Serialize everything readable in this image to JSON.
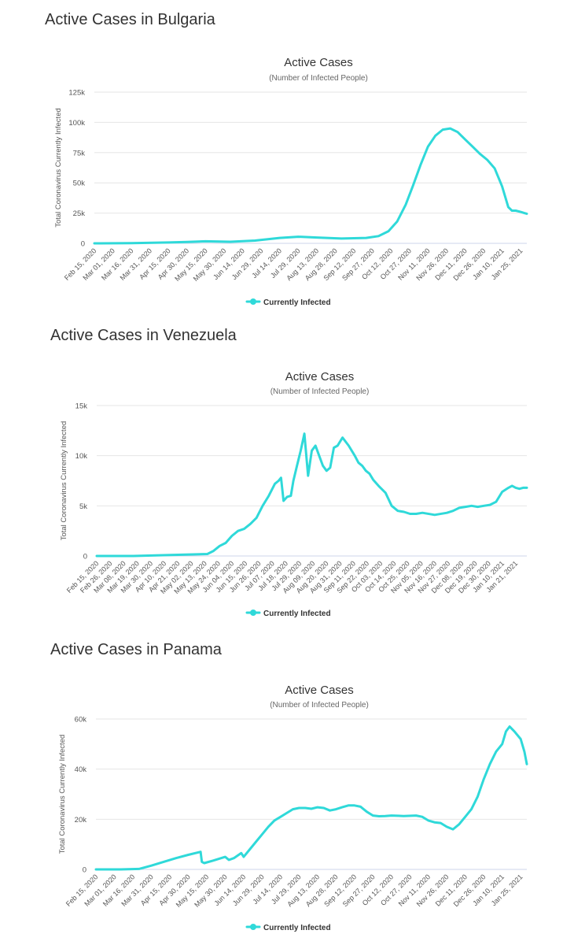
{
  "colors": {
    "series": "#2fd9d9",
    "text": "#333333"
  },
  "chart_data": [
    {
      "type": "line",
      "section_title": "Active Cases in Bulgaria",
      "title": "Active Cases",
      "subtitle": "(Number of Infected People)",
      "xlabel": "",
      "ylabel": "Total Coronavirus Currently Infected",
      "ylim": [
        0,
        125000
      ],
      "yticks": [
        0,
        25000,
        50000,
        75000,
        100000,
        125000
      ],
      "ytick_labels": [
        "0",
        "25k",
        "50k",
        "75k",
        "100k",
        "125k"
      ],
      "x_range": [
        0,
        350
      ],
      "x_ticks": [
        0,
        15,
        30,
        45,
        60,
        75,
        90,
        105,
        120,
        135,
        150,
        165,
        180,
        195,
        210,
        225,
        240,
        255,
        270,
        285,
        300,
        315,
        330,
        345
      ],
      "x_tick_labels": [
        "Feb 15, 2020",
        "Mar 01, 2020",
        "Mar 16, 2020",
        "Mar 31, 2020",
        "Apr 15, 2020",
        "Apr 30, 2020",
        "May 15, 2020",
        "May 30, 2020",
        "Jun 14, 2020",
        "Jun 29, 2020",
        "Jul 14, 2020",
        "Jul 29, 2020",
        "Aug 13, 2020",
        "Aug 28, 2020",
        "Sep 12, 2020",
        "Sep 27, 2020",
        "Oct 12, 2020",
        "Oct 27, 2020",
        "Nov 11, 2020",
        "Nov 26, 2020",
        "Dec 11, 2020",
        "Dec 26, 2020",
        "Jan 10, 2021",
        "Jan 25, 2021"
      ],
      "legend": "Currently Infected",
      "series": [
        {
          "name": "Currently Infected",
          "x": [
            0,
            30,
            60,
            75,
            90,
            110,
            130,
            150,
            165,
            180,
            200,
            220,
            230,
            238,
            245,
            252,
            258,
            264,
            270,
            276,
            282,
            288,
            294,
            300,
            306,
            312,
            318,
            324,
            330,
            335,
            338,
            341,
            345,
            348,
            350
          ],
          "values": [
            0,
            200,
            700,
            1200,
            1700,
            1300,
            2300,
            4500,
            5500,
            4800,
            4000,
            4500,
            6000,
            10000,
            18000,
            32000,
            48000,
            65000,
            80000,
            89000,
            94000,
            95000,
            92000,
            86000,
            80000,
            74000,
            69000,
            62000,
            47000,
            30000,
            27000,
            27000,
            26000,
            25000,
            24500
          ]
        }
      ]
    },
    {
      "type": "line",
      "section_title": "Active Cases in Venezuela",
      "title": "Active Cases",
      "subtitle": "(Number of Infected People)",
      "xlabel": "",
      "ylabel": "Total Coronavirus Currently Infected",
      "ylim": [
        0,
        15000
      ],
      "yticks": [
        0,
        5000,
        10000,
        15000
      ],
      "ytick_labels": [
        "0",
        "5k",
        "10k",
        "15k"
      ],
      "x_range": [
        0,
        350
      ],
      "x_ticks": [
        0,
        11,
        22,
        33,
        44,
        55,
        66,
        77,
        88,
        99,
        110,
        121,
        132,
        143,
        154,
        165,
        176,
        187,
        198,
        209,
        220,
        231,
        242,
        253,
        264,
        275,
        286,
        297,
        308,
        319,
        330,
        341
      ],
      "x_tick_labels": [
        "Feb 15, 2020",
        "Feb 26, 2020",
        "Mar 08, 2020",
        "Mar 19, 2020",
        "Mar 30, 2020",
        "Apr 10, 2020",
        "Apr 21, 2020",
        "May 02, 2020",
        "May 13, 2020",
        "May 24, 2020",
        "Jun 04, 2020",
        "Jun 15, 2020",
        "Jun 26, 2020",
        "Jul 07, 2020",
        "Jul 18, 2020",
        "Jul 29, 2020",
        "Aug 09, 2020",
        "Aug 20, 2020",
        "Aug 31, 2020",
        "Sep 11, 2020",
        "Sep 22, 2020",
        "Oct 03, 2020",
        "Oct 14, 2020",
        "Oct 25, 2020",
        "Nov 05, 2020",
        "Nov 16, 2020",
        "Nov 27, 2020",
        "Dec 08, 2020",
        "Dec 19, 2020",
        "Dec 30, 2020",
        "Jan 10, 2021",
        "Jan 21, 2021"
      ],
      "legend": "Currently Infected",
      "series": [
        {
          "name": "Currently Infected",
          "x": [
            0,
            30,
            60,
            90,
            95,
            100,
            105,
            110,
            115,
            120,
            125,
            130,
            135,
            140,
            145,
            148,
            150,
            152,
            155,
            158,
            160,
            163,
            166,
            169,
            172,
            175,
            178,
            181,
            184,
            187,
            190,
            193,
            196,
            200,
            205,
            210,
            213,
            216,
            219,
            222,
            225,
            230,
            235,
            240,
            245,
            250,
            255,
            260,
            265,
            275,
            285,
            290,
            295,
            300,
            305,
            310,
            315,
            320,
            325,
            330,
            335,
            338,
            341,
            344,
            347,
            350
          ],
          "values": [
            0,
            0,
            100,
            200,
            500,
            1000,
            1300,
            2000,
            2500,
            2700,
            3200,
            3800,
            5000,
            6000,
            7200,
            7500,
            7800,
            5500,
            5900,
            6000,
            7500,
            9000,
            10500,
            12200,
            8000,
            10500,
            11000,
            10000,
            9000,
            8500,
            8800,
            10800,
            11000,
            11800,
            11000,
            10000,
            9300,
            9000,
            8500,
            8200,
            7600,
            6900,
            6300,
            5000,
            4500,
            4400,
            4200,
            4200,
            4300,
            4100,
            4300,
            4500,
            4800,
            4900,
            5000,
            4900,
            5000,
            5100,
            5400,
            6400,
            6800,
            7000,
            6800,
            6700,
            6800,
            6800
          ]
        }
      ]
    },
    {
      "type": "line",
      "section_title": "Active Cases in Panama",
      "title": "Active Cases",
      "subtitle": "(Number of Infected People)",
      "xlabel": "",
      "ylabel": "Total Coronavirus Currently Infected",
      "ylim": [
        0,
        60000
      ],
      "yticks": [
        0,
        20000,
        40000,
        60000
      ],
      "ytick_labels": [
        "0",
        "20k",
        "40k",
        "60k"
      ],
      "x_range": [
        0,
        350
      ],
      "x_ticks": [
        0,
        15,
        30,
        45,
        60,
        75,
        90,
        105,
        120,
        135,
        150,
        165,
        180,
        195,
        210,
        225,
        240,
        255,
        270,
        285,
        300,
        315,
        330,
        345
      ],
      "x_tick_labels": [
        "Feb 15, 2020",
        "Mar 01, 2020",
        "Mar 16, 2020",
        "Mar 31, 2020",
        "Apr 15, 2020",
        "Apr 30, 2020",
        "May 15, 2020",
        "May 30, 2020",
        "Jun 14, 2020",
        "Jun 29, 2020",
        "Jul 14, 2020",
        "Jul 29, 2020",
        "Aug 13, 2020",
        "Aug 28, 2020",
        "Sep 12, 2020",
        "Sep 27, 2020",
        "Oct 12, 2020",
        "Oct 27, 2020",
        "Nov 11, 2020",
        "Nov 26, 2020",
        "Dec 11, 2020",
        "Dec 26, 2020",
        "Jan 10, 2021",
        "Jan 25, 2021"
      ],
      "legend": "Currently Infected",
      "series": [
        {
          "name": "Currently Infected",
          "x": [
            0,
            20,
            35,
            45,
            55,
            65,
            75,
            85,
            86,
            88,
            95,
            105,
            108,
            112,
            118,
            120,
            125,
            130,
            135,
            140,
            145,
            150,
            155,
            160,
            165,
            170,
            175,
            180,
            185,
            190,
            195,
            200,
            205,
            210,
            215,
            220,
            225,
            230,
            235,
            240,
            250,
            260,
            265,
            270,
            275,
            280,
            285,
            290,
            295,
            300,
            305,
            310,
            315,
            320,
            325,
            330,
            333,
            336,
            340,
            345,
            348,
            350
          ],
          "values": [
            0,
            0,
            200,
            1500,
            3000,
            4500,
            5800,
            7000,
            3000,
            2500,
            3500,
            5000,
            3800,
            4500,
            6500,
            5000,
            8000,
            11000,
            14000,
            17000,
            19500,
            21000,
            22500,
            24000,
            24500,
            24500,
            24200,
            24800,
            24500,
            23500,
            24000,
            24800,
            25500,
            25500,
            25000,
            23000,
            21500,
            21200,
            21300,
            21500,
            21300,
            21500,
            21000,
            19500,
            18800,
            18500,
            17000,
            16000,
            18000,
            21000,
            24000,
            29000,
            36000,
            42000,
            47000,
            50000,
            55000,
            57000,
            55000,
            52000,
            47000,
            42000
          ]
        }
      ]
    }
  ]
}
